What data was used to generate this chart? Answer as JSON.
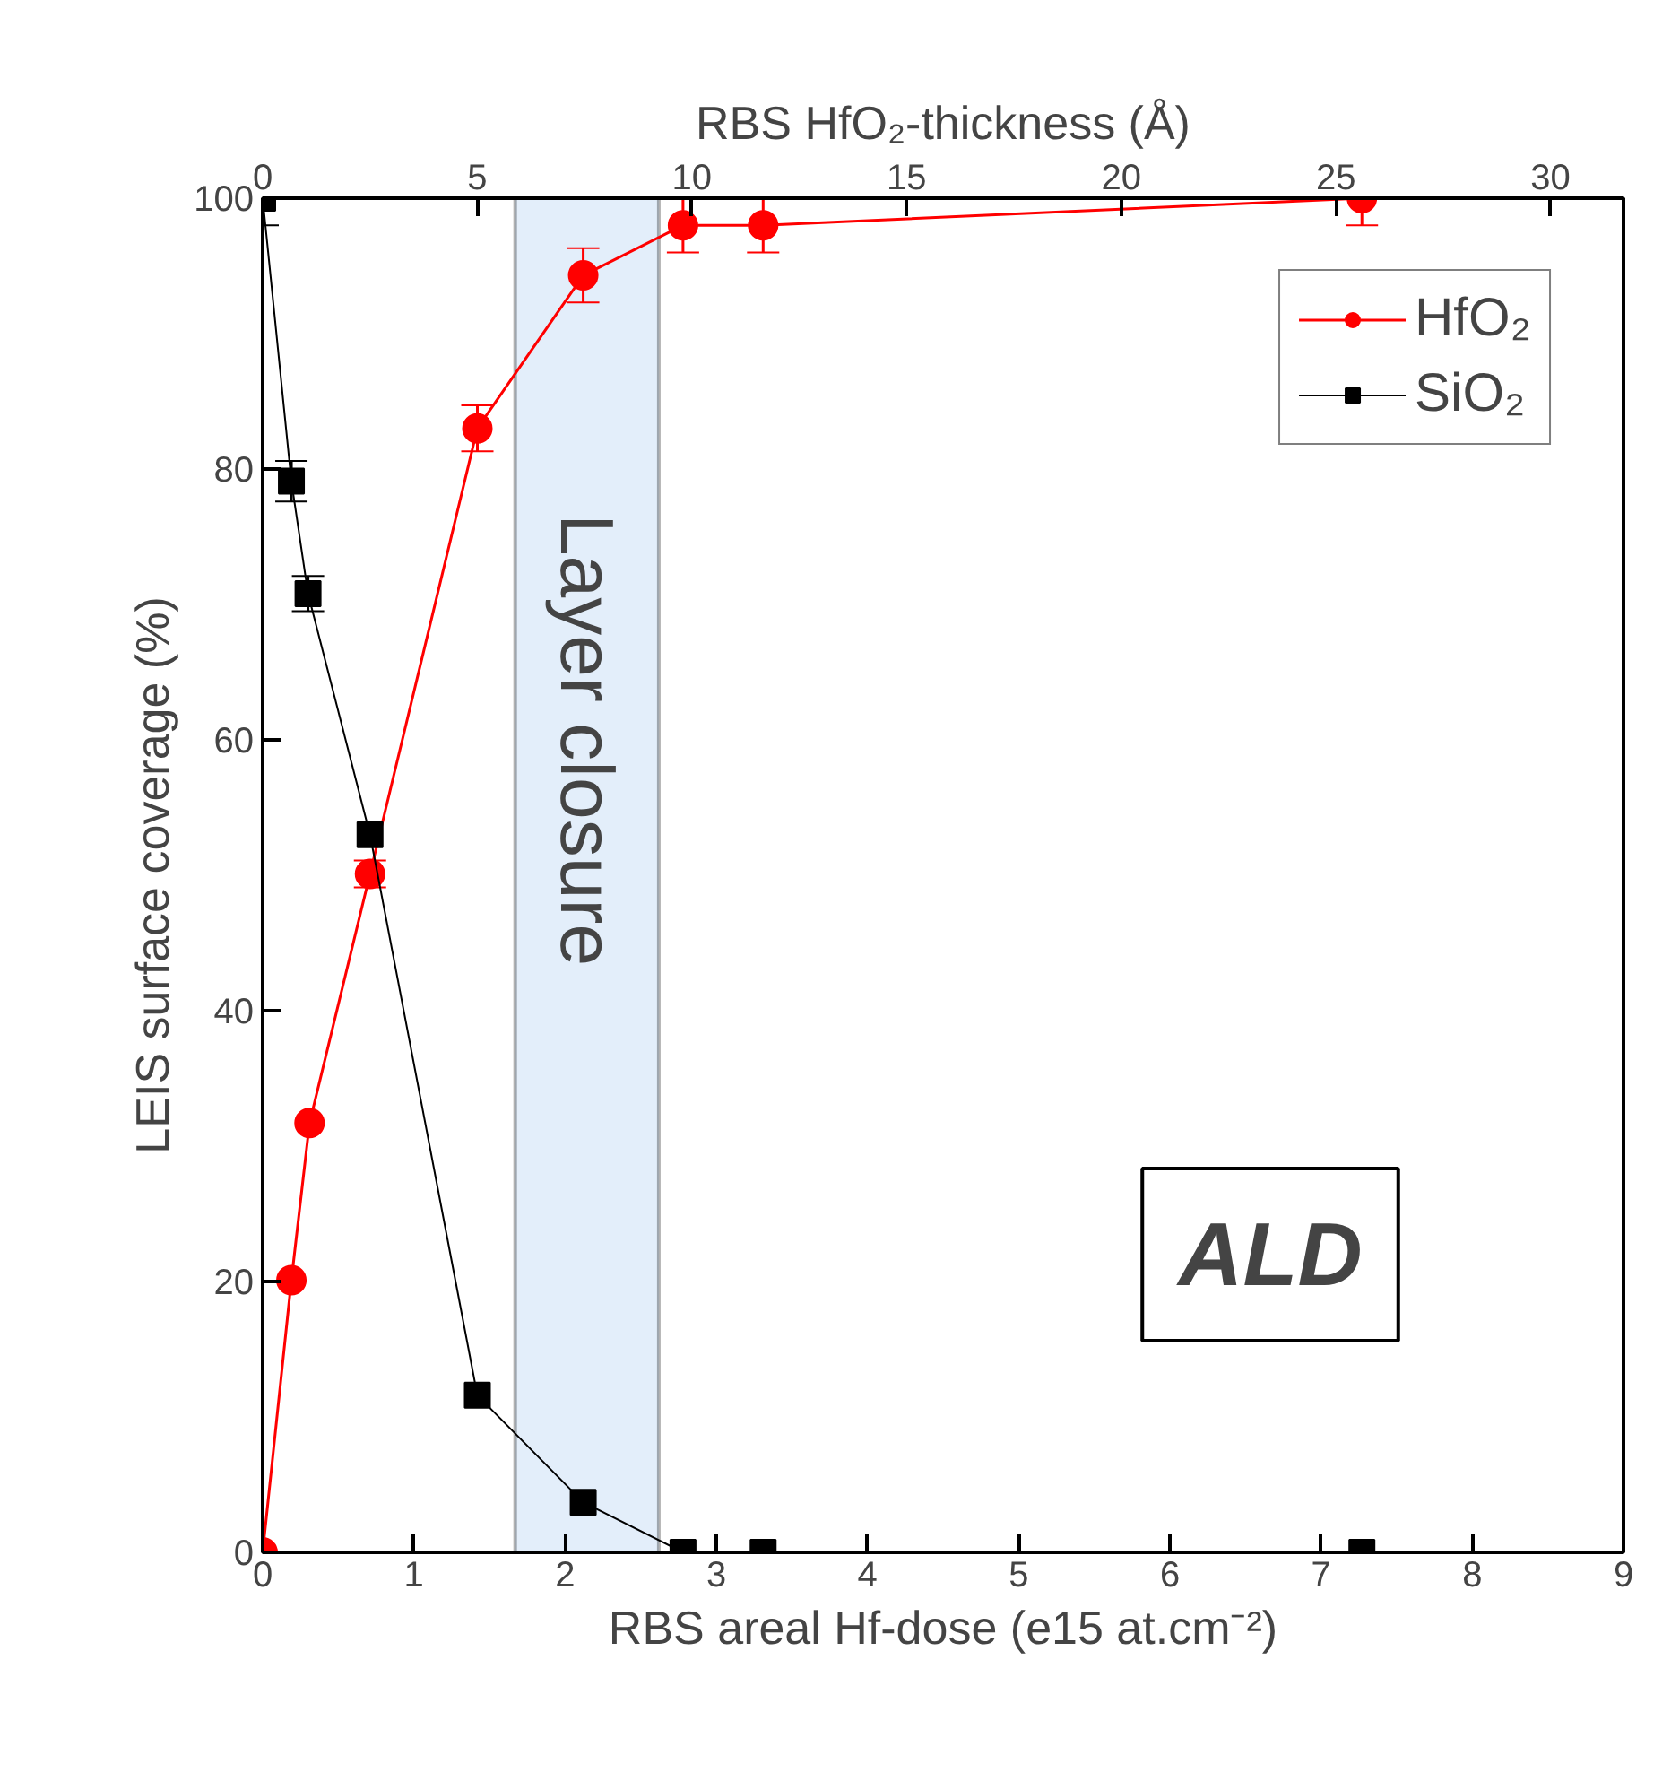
{
  "chart_data": {
    "type": "line",
    "xlabel": "RBS areal Hf-dose (e15 at.cm⁻²)",
    "ylabel": "LEIS surface coverage (%)",
    "x2label": "RBS HfO₂-thickness (Å)",
    "xlim": [
      0,
      9
    ],
    "xticks": [
      0,
      1,
      2,
      3,
      4,
      5,
      6,
      7,
      8,
      9
    ],
    "ylim": [
      0,
      100
    ],
    "yticks": [
      0,
      20,
      40,
      60,
      80,
      100
    ],
    "x2lim": [
      0,
      31.7
    ],
    "x2ticks": [
      0,
      5,
      10,
      15,
      20,
      25,
      30
    ],
    "series": [
      {
        "name": "HfO₂",
        "color": "#ff0000",
        "marker": "circle",
        "x": [
          0,
          0.19,
          0.31,
          0.71,
          1.42,
          2.12,
          2.78,
          3.31,
          7.27
        ],
        "values": [
          0,
          20.1,
          31.7,
          50.1,
          83,
          94.3,
          98,
          98,
          100
        ],
        "errors": [
          null,
          null,
          null,
          1,
          1.7,
          2,
          2,
          2,
          [
            98,
            100
          ]
        ]
      },
      {
        "name": "SiO₂",
        "color": "#000000",
        "marker": "square",
        "x": [
          0,
          0.19,
          0.3,
          0.71,
          1.42,
          2.12,
          2.78,
          3.31,
          7.27
        ],
        "values": [
          100,
          79.1,
          70.8,
          53,
          11.6,
          3.7,
          0,
          0,
          0
        ],
        "errors": [
          [
            98,
            100
          ],
          1.5,
          1.3,
          null,
          null,
          null,
          null,
          null,
          null
        ]
      }
    ],
    "bands": [
      {
        "axis": "x",
        "from": 1.67,
        "to": 2.62,
        "label": "Layer closure",
        "color": "#e3eefa"
      }
    ],
    "annotations": [
      "ALD"
    ],
    "legend": "top right",
    "grid": false,
    "line_style": "solid"
  }
}
